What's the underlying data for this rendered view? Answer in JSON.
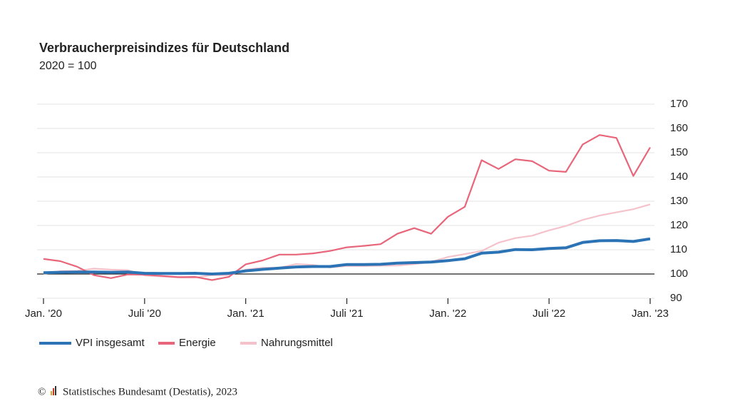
{
  "chart_data": {
    "type": "line",
    "title": "Verbraucherpreisindizes für Deutschland",
    "subtitle": "2020 = 100",
    "source": "Statistisches Bundesamt (Destatis), 2023",
    "categories": [
      "Jan. '20",
      null,
      null,
      null,
      null,
      null,
      "Juli '20",
      null,
      null,
      null,
      null,
      null,
      "Jan. '21",
      null,
      null,
      null,
      null,
      null,
      "Juli '21",
      null,
      null,
      null,
      null,
      null,
      "Jan. '22",
      null,
      null,
      null,
      null,
      null,
      "Juli '22",
      null,
      null,
      null,
      null,
      null,
      "Jan. '23"
    ],
    "series": [
      {
        "name": "VPI insgesamt",
        "color": "#2b73b4",
        "values": [
          100.5,
          100.7,
          100.8,
          100.8,
          100.7,
          100.8,
          100.3,
          100.2,
          100.2,
          100.3,
          100.0,
          100.3,
          101.3,
          101.9,
          102.4,
          102.9,
          103.1,
          103.1,
          103.9,
          103.9,
          104.0,
          104.5,
          104.7,
          104.9,
          105.5,
          106.3,
          108.6,
          109.0,
          110.1,
          110.0,
          110.5,
          110.8,
          113.0,
          113.7,
          113.8,
          113.4,
          114.5
        ]
      },
      {
        "name": "Energie",
        "color": "#e8657a",
        "values": [
          106.2,
          105.3,
          103.0,
          99.5,
          98.3,
          99.8,
          99.7,
          99.2,
          98.7,
          98.8,
          97.5,
          98.8,
          104.0,
          105.6,
          108.0,
          108.0,
          108.5,
          109.5,
          111.0,
          111.6,
          112.3,
          116.6,
          118.9,
          116.6,
          123.6,
          127.7,
          146.9,
          143.3,
          147.3,
          146.5,
          142.6,
          142.1,
          153.4,
          157.3,
          156.1,
          140.4,
          152.2
        ]
      },
      {
        "name": "Nahrungsmittel",
        "color": "#f5c2cc",
        "values": [
          100.0,
          101.2,
          101.3,
          102.2,
          101.8,
          101.6,
          99.4,
          99.0,
          98.6,
          98.5,
          99.6,
          99.5,
          101.8,
          102.6,
          102.6,
          104.1,
          103.7,
          102.7,
          103.3,
          103.3,
          103.4,
          103.5,
          104.1,
          105.0,
          107.0,
          108.2,
          109.5,
          112.9,
          114.8,
          115.8,
          118.0,
          119.8,
          122.3,
          124.1,
          125.4,
          126.7,
          128.7
        ]
      }
    ],
    "ylim": [
      90,
      170
    ],
    "yticks": [
      90,
      100,
      110,
      120,
      130,
      140,
      150,
      160,
      170
    ],
    "baseline": 100,
    "grid": true,
    "y_axis_side": "right",
    "legend": "bottom"
  }
}
